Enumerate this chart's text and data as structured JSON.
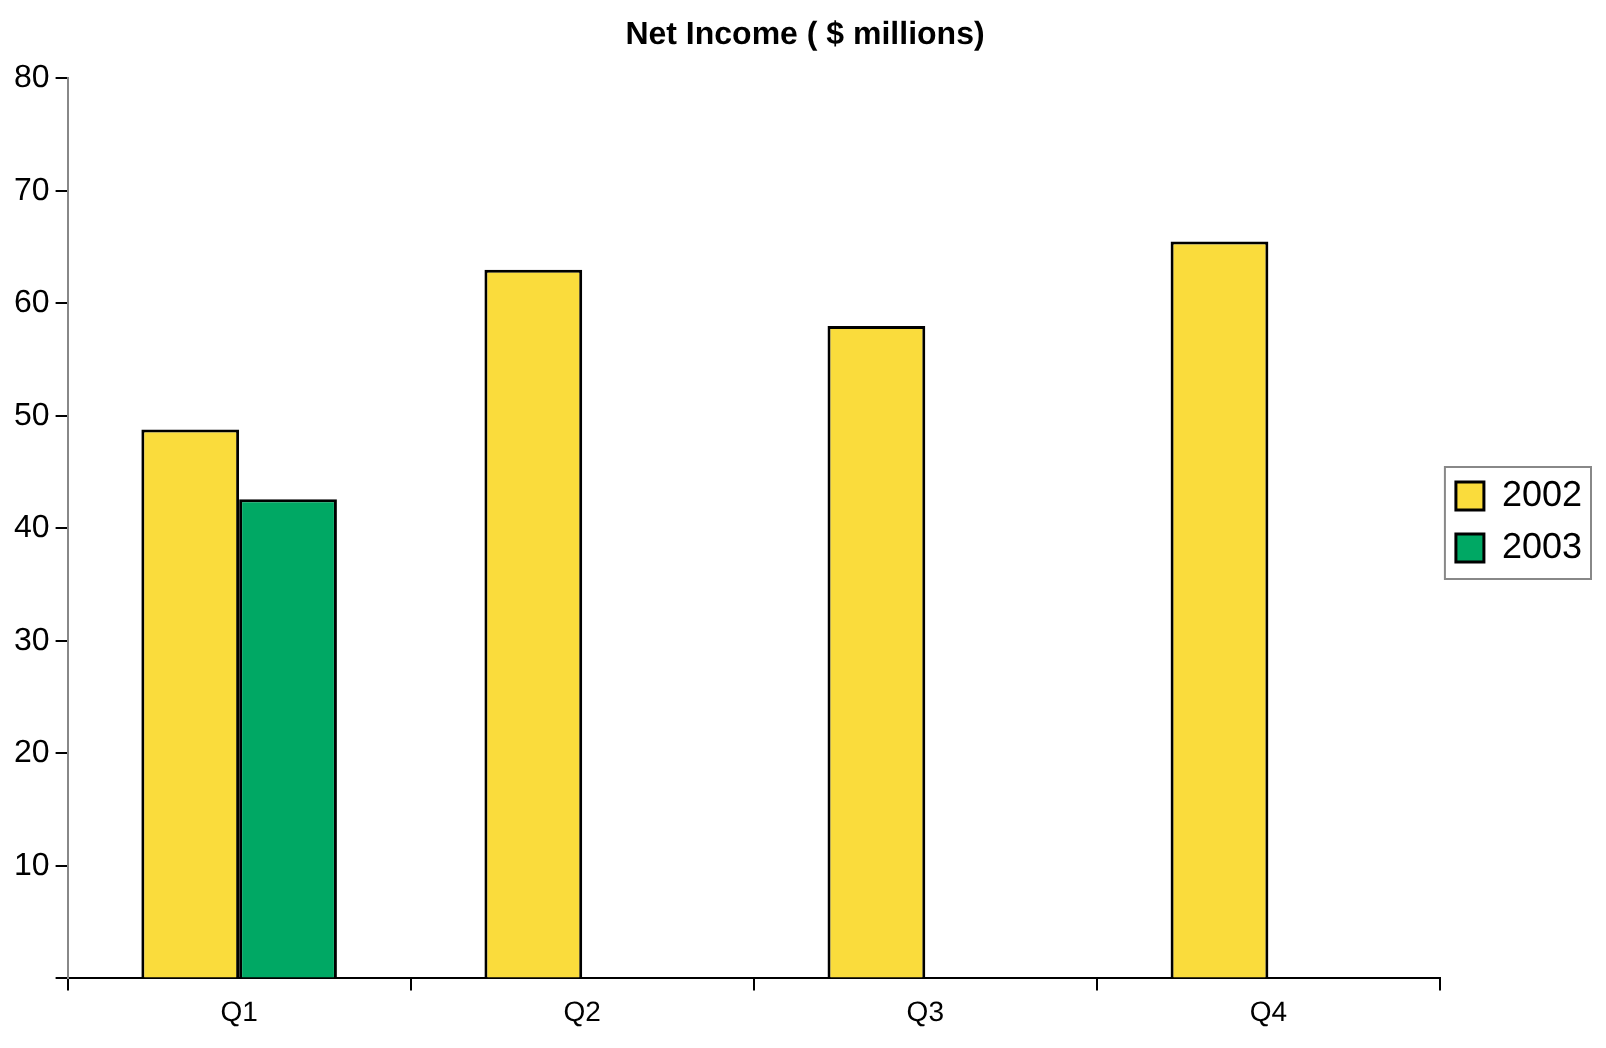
{
  "chart_data": {
    "type": "bar",
    "title": "Net Income ( $ millions)",
    "categories": [
      "Q1",
      "Q2",
      "Q3",
      "Q4"
    ],
    "series": [
      {
        "name": "2002",
        "color": "#fadc3c",
        "values": [
          48.8,
          63.0,
          58.0,
          65.5
        ]
      },
      {
        "name": "2003",
        "color": "#00a864",
        "values": [
          42.6,
          null,
          null,
          null
        ]
      }
    ],
    "ylim": [
      0,
      80
    ],
    "yticks": [
      {
        "value": 0,
        "label": null
      },
      10,
      20,
      30,
      40,
      50,
      60,
      70,
      80
    ],
    "grid": false,
    "legend": "right"
  }
}
